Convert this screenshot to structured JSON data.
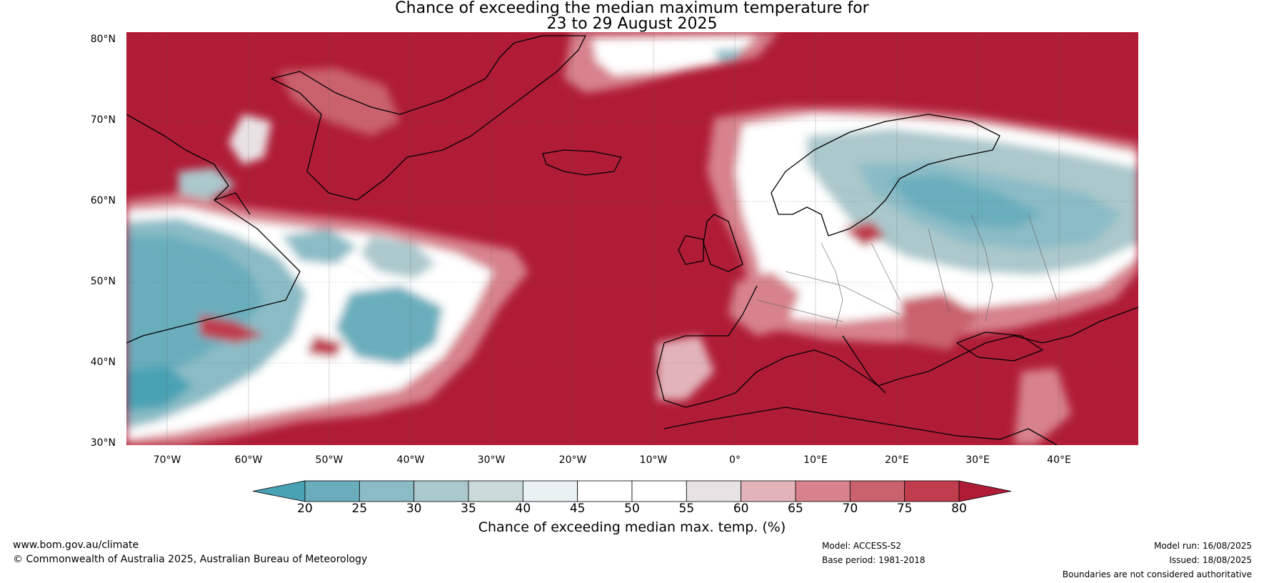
{
  "title_line1": "Chance of exceeding the median maximum temperature for",
  "title_line2": "23 to 29 August 2025",
  "lat_labels": [
    "80°N",
    "70°N",
    "60°N",
    "50°N",
    "40°N",
    "30°N"
  ],
  "lon_labels": [
    "70°W",
    "60°W",
    "50°W",
    "40°W",
    "30°W",
    "20°W",
    "10°W",
    "0°",
    "10°E",
    "20°E",
    "30°E",
    "40°E"
  ],
  "colorbar": {
    "ticks": [
      "20",
      "25",
      "30",
      "35",
      "40",
      "45",
      "50",
      "55",
      "60",
      "65",
      "70",
      "75",
      "80"
    ],
    "colors": [
      "#49a2b4",
      "#6aaebd",
      "#8bbcc6",
      "#abc8cc",
      "#cbd9db",
      "#e9f1f3",
      "#ffffff",
      "#ffffff",
      "#e9e2e4",
      "#e2b4ba",
      "#d7828d",
      "#c9626d",
      "#bf3d4d",
      "#b01c36"
    ],
    "label": "Chance of exceeding median max. temp. (%)"
  },
  "footer": {
    "website": "www.bom.gov.au/climate",
    "copyright": "© Commonwealth of Australia 2025, Australian Bureau of Meteorology",
    "model": "Model: ACCESS-S2",
    "base_period": "Base period: 1981-2018",
    "model_run": "Model run: 16/08/2025",
    "issued": "Issued: 18/08/2025",
    "disclaimer": "Boundaries are not considered authoritative"
  },
  "colors": {
    "warm": "#b01c36",
    "cool": "#49a2b4"
  }
}
